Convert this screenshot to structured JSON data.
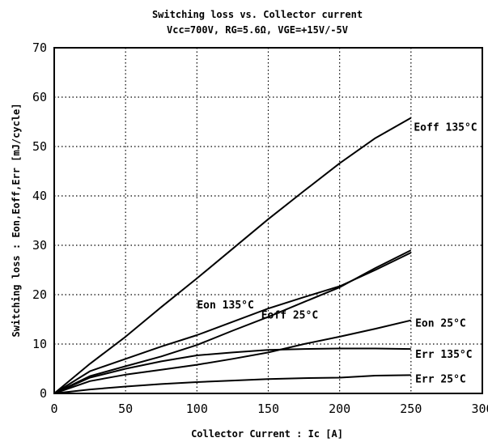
{
  "chart_data": {
    "type": "line",
    "title": "Switching loss vs. Collector current",
    "subtitle": "Vcc=700V, RG=5.6Ω, VGE=+15V/-5V",
    "xlabel": "Collector Current  :  Ic        [A]",
    "ylabel": "Switching loss  :  Eon,Eoff,Err  [mJ/cycle]",
    "xlim": [
      0,
      300
    ],
    "ylim": [
      0,
      70
    ],
    "xticks": [
      "0",
      "50",
      "100",
      "150",
      "200",
      "250",
      "300"
    ],
    "yticks": [
      "0",
      "10",
      "20",
      "30",
      "40",
      "50",
      "60",
      "70"
    ],
    "grid": true,
    "series": [
      {
        "name": "Eoff 135°C",
        "x": [
          0,
          25,
          50,
          75,
          100,
          125,
          150,
          175,
          200,
          225,
          250
        ],
        "y": [
          0,
          6,
          11.5,
          17.5,
          23.3,
          29.3,
          35.3,
          41,
          46.6,
          51.7,
          55.8
        ]
      },
      {
        "name": "Eon 135°C",
        "x": [
          0,
          25,
          50,
          75,
          100,
          125,
          150,
          175,
          200,
          225,
          250
        ],
        "y": [
          0,
          4.5,
          7,
          9.5,
          11.8,
          14.5,
          17.2,
          19.5,
          21.7,
          25,
          28.5
        ]
      },
      {
        "name": "Eoff 25°C",
        "x": [
          0,
          25,
          50,
          75,
          100,
          125,
          150,
          175,
          200,
          225,
          250
        ],
        "y": [
          0,
          3.5,
          5.5,
          7.5,
          9.8,
          12.7,
          15.5,
          18.5,
          21.5,
          25.4,
          29
        ]
      },
      {
        "name": "Eon 25°C",
        "x": [
          0,
          25,
          50,
          75,
          100,
          125,
          150,
          175,
          200,
          225,
          250
        ],
        "y": [
          0,
          2.5,
          3.8,
          4.8,
          5.8,
          7,
          8.3,
          10,
          11.5,
          13.1,
          14.8
        ]
      },
      {
        "name": "Err 135°C",
        "x": [
          0,
          25,
          50,
          75,
          100,
          125,
          150,
          175,
          200,
          225,
          250
        ],
        "y": [
          0,
          3.2,
          5,
          6.5,
          7.7,
          8.3,
          8.8,
          9,
          9.1,
          9.1,
          9
        ]
      },
      {
        "name": "Err 25°C",
        "x": [
          0,
          25,
          50,
          75,
          100,
          125,
          150,
          175,
          200,
          225,
          250
        ],
        "y": [
          0,
          0.8,
          1.4,
          1.9,
          2.3,
          2.6,
          2.9,
          3.1,
          3.2,
          3.6,
          3.7
        ]
      }
    ]
  }
}
